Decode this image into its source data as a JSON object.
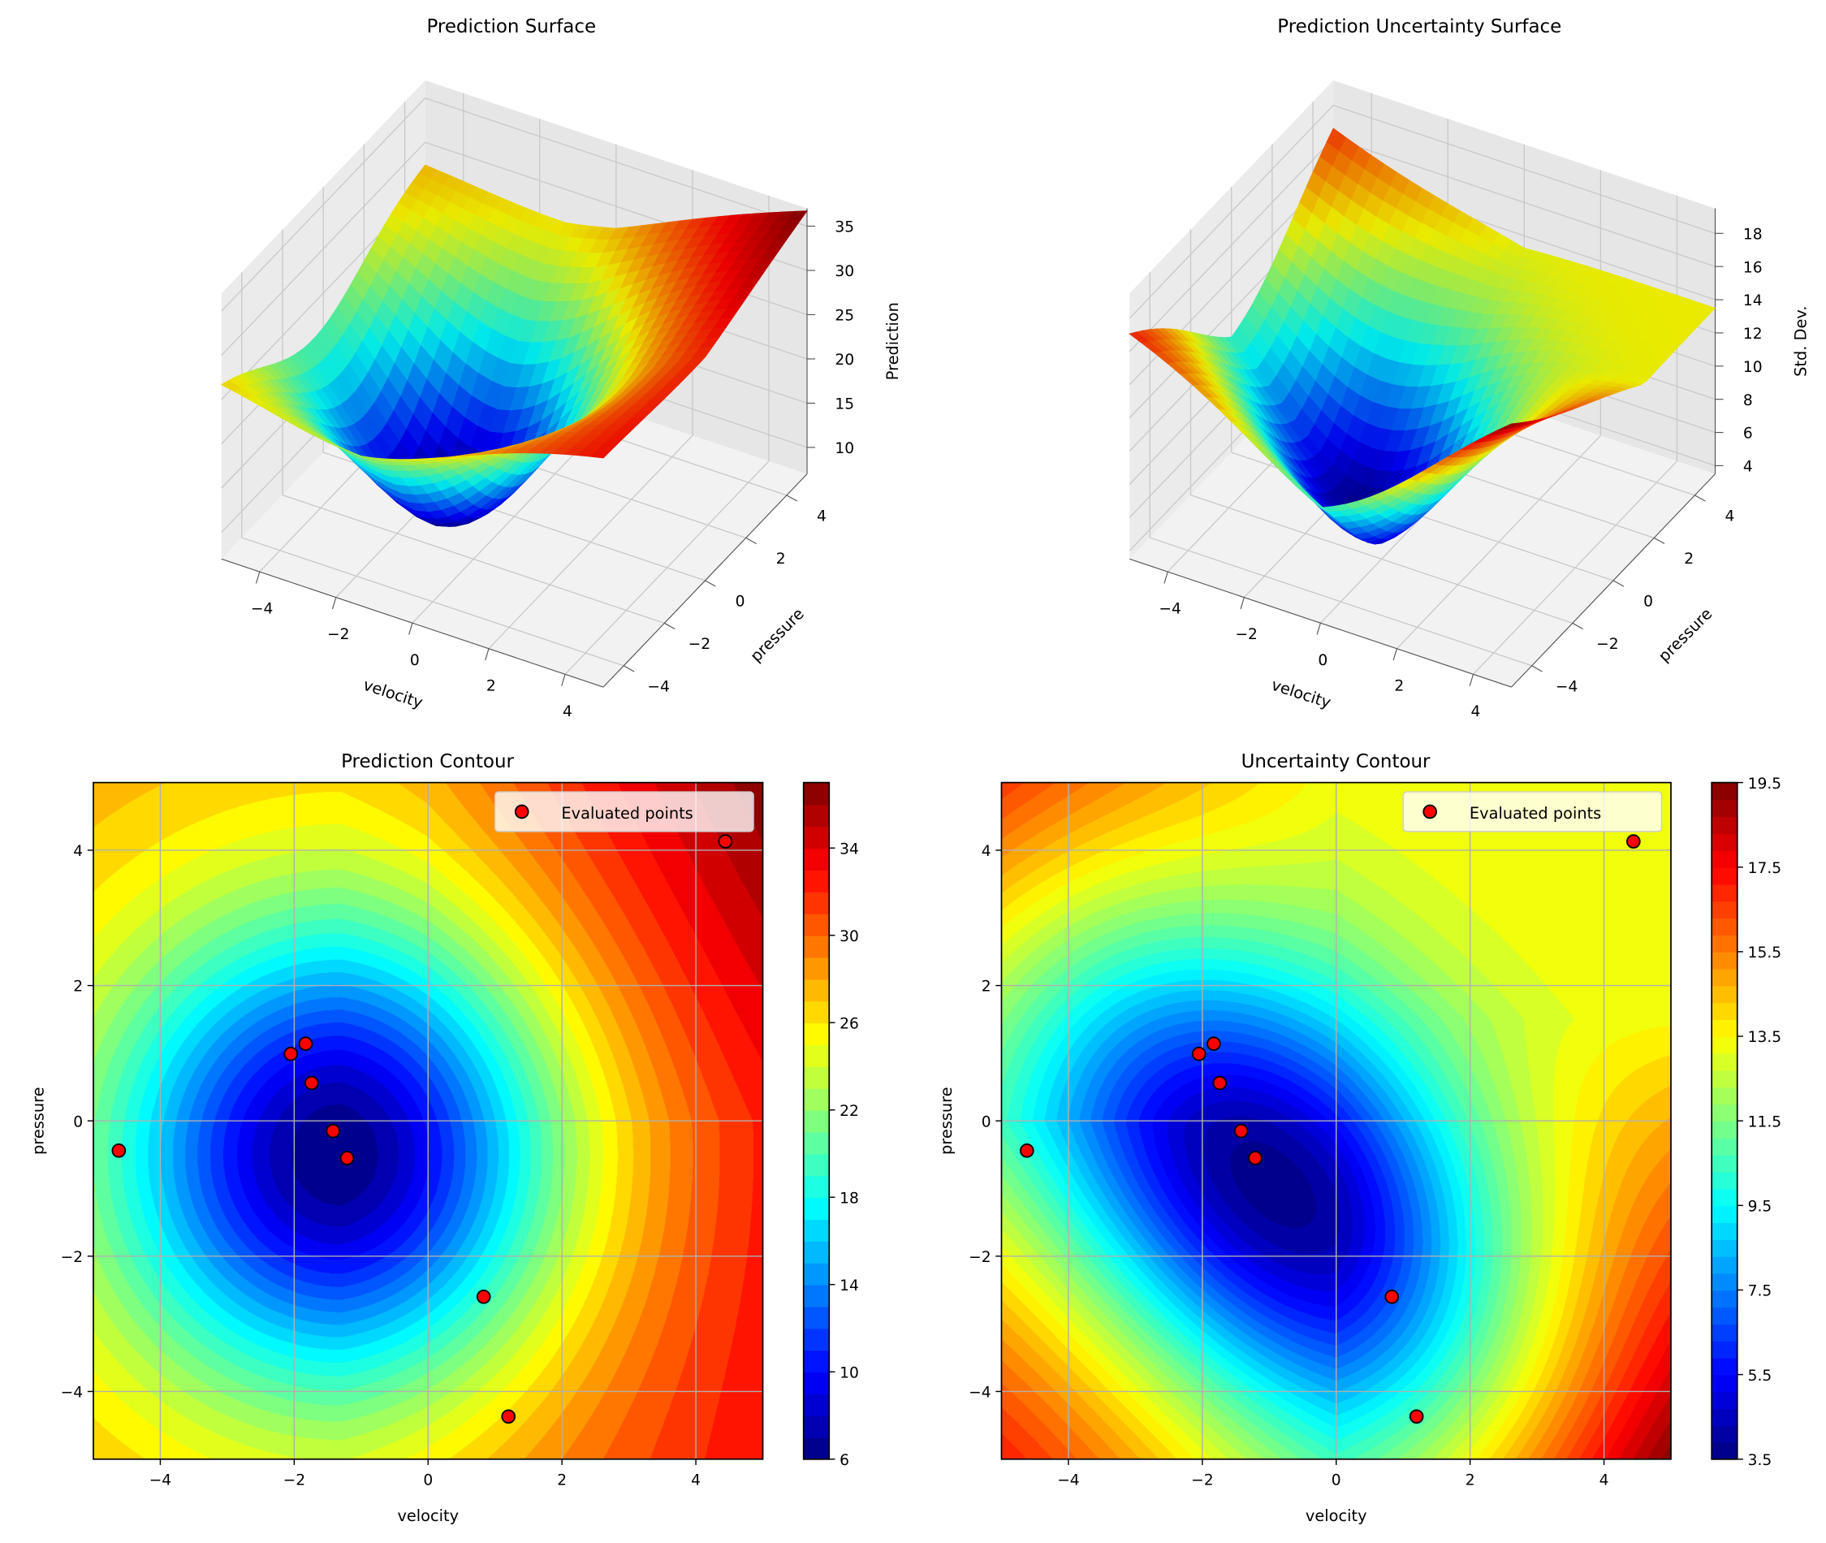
{
  "chart_data": [
    {
      "type": "surface3d",
      "title": "Prediction Surface",
      "xlabel": "velocity",
      "ylabel": "pressure",
      "zlabel": "Prediction",
      "xlim": [
        -5,
        5
      ],
      "ylim": [
        -5,
        5
      ],
      "zlim": [
        7,
        37
      ],
      "xticks": [
        "−4",
        "−2",
        "0",
        "2",
        "4"
      ],
      "yticks": [
        "−4",
        "−2",
        "0",
        "2",
        "4"
      ],
      "zticks": [
        "10",
        "15",
        "20",
        "25",
        "30",
        "35"
      ],
      "colormap": "jet",
      "minimum": {
        "x": -1.3,
        "y": -0.5,
        "z": 6
      }
    },
    {
      "type": "surface3d",
      "title": "Prediction Uncertainty Surface",
      "xlabel": "velocity",
      "ylabel": "pressure",
      "zlabel": "Std. Dev.",
      "xlim": [
        -5,
        5
      ],
      "ylim": [
        -5,
        5
      ],
      "zlim": [
        3.5,
        19.5
      ],
      "xticks": [
        "−4",
        "−2",
        "0",
        "2",
        "4"
      ],
      "yticks": [
        "−4",
        "−2",
        "0",
        "2",
        "4"
      ],
      "zticks": [
        "4",
        "6",
        "8",
        "10",
        "12",
        "14",
        "16",
        "18"
      ],
      "colormap": "jet",
      "minimum": {
        "x": -1.0,
        "y": -1.0,
        "z": 3.5
      }
    },
    {
      "type": "contour",
      "title": "Prediction Contour",
      "xlabel": "velocity",
      "ylabel": "pressure",
      "xlim": [
        -5,
        5
      ],
      "ylim": [
        -5,
        5
      ],
      "xticks": [
        "−4",
        "−2",
        "0",
        "2",
        "4"
      ],
      "yticks": [
        "−4",
        "−2",
        "0",
        "2",
        "4"
      ],
      "grid": true,
      "colormap": "jet",
      "colorbar": {
        "range": [
          6,
          37
        ],
        "step": 1,
        "ticks": [
          "6",
          "10",
          "14",
          "18",
          "22",
          "26",
          "30",
          "34"
        ]
      },
      "legend": {
        "label": "Evaluated points",
        "position": "top-right"
      },
      "points": [
        {
          "x": -2.05,
          "y": 0.99
        },
        {
          "x": -1.83,
          "y": 1.14
        },
        {
          "x": -1.74,
          "y": 0.56
        },
        {
          "x": -1.42,
          "y": -0.15
        },
        {
          "x": -1.21,
          "y": -0.55
        },
        {
          "x": -4.62,
          "y": -0.44
        },
        {
          "x": 0.83,
          "y": -2.6
        },
        {
          "x": 1.2,
          "y": -4.37
        },
        {
          "x": 4.44,
          "y": 4.13
        }
      ],
      "point_color": "#ff0000"
    },
    {
      "type": "contour",
      "title": "Uncertainty Contour",
      "xlabel": "velocity",
      "ylabel": "pressure",
      "xlim": [
        -5,
        5
      ],
      "ylim": [
        -5,
        5
      ],
      "xticks": [
        "−4",
        "−2",
        "0",
        "2",
        "4"
      ],
      "yticks": [
        "−4",
        "−2",
        "0",
        "2",
        "4"
      ],
      "grid": true,
      "colormap": "jet",
      "colorbar": {
        "range": [
          3.5,
          19.5
        ],
        "step": 0.4,
        "ticks": [
          "3.5",
          "5.5",
          "7.5",
          "9.5",
          "11.5",
          "13.5",
          "15.5",
          "17.5",
          "19.5"
        ]
      },
      "legend": {
        "label": "Evaluated points",
        "position": "top-right"
      },
      "points": [
        {
          "x": -2.05,
          "y": 0.99
        },
        {
          "x": -1.83,
          "y": 1.14
        },
        {
          "x": -1.74,
          "y": 0.56
        },
        {
          "x": -1.42,
          "y": -0.15
        },
        {
          "x": -1.21,
          "y": -0.55
        },
        {
          "x": -4.62,
          "y": -0.44
        },
        {
          "x": 0.83,
          "y": -2.6
        },
        {
          "x": 1.2,
          "y": -4.37
        },
        {
          "x": 4.44,
          "y": 4.13
        }
      ],
      "point_color": "#ff0000"
    }
  ]
}
